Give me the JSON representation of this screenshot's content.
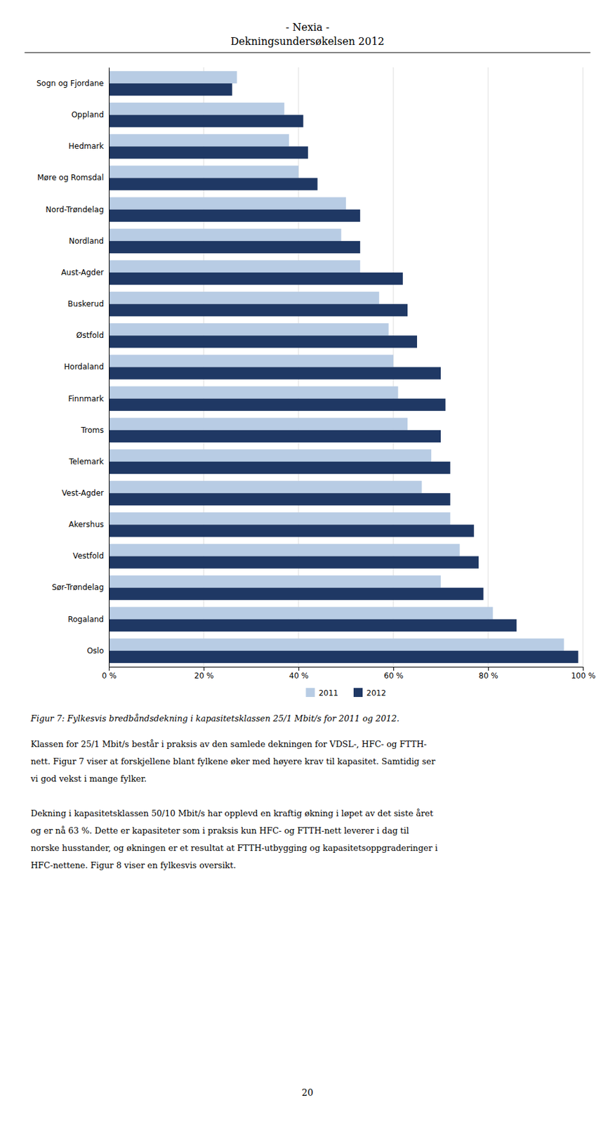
{
  "chart_data": {
    "type": "bar",
    "title": "- Nexia -",
    "subtitle": "Dekningsundersøkelsen 2012",
    "orientation": "horizontal",
    "categories": [
      "Sogn og Fjordane",
      "Oppland",
      "Hedmark",
      "Møre og Romsdal",
      "Nord-Trøndelag",
      "Nordland",
      "Aust-Agder",
      "Buskerud",
      "Østfold",
      "Hordaland",
      "Finnmark",
      "Troms",
      "Telemark",
      "Vest-Agder",
      "Akershus",
      "Vestfold",
      "Sør-Trøndelag",
      "Rogaland",
      "Oslo"
    ],
    "series": [
      {
        "name": "2011",
        "color": "#b8cce4",
        "values": [
          27,
          37,
          38,
          40,
          50,
          49,
          53,
          57,
          59,
          60,
          61,
          63,
          68,
          66,
          72,
          74,
          70,
          81,
          96
        ]
      },
      {
        "name": "2012",
        "color": "#1f3864",
        "values": [
          26,
          41,
          42,
          44,
          53,
          53,
          62,
          63,
          65,
          70,
          71,
          70,
          72,
          72,
          77,
          78,
          79,
          86,
          99
        ]
      }
    ],
    "xlim": [
      0,
      100
    ],
    "xticks": [
      {
        "value": 0,
        "label": "0 %"
      },
      {
        "value": 20,
        "label": "20 %"
      },
      {
        "value": 40,
        "label": "40 %"
      },
      {
        "value": 60,
        "label": "60 %"
      },
      {
        "value": 80,
        "label": "80 %"
      },
      {
        "value": 100,
        "label": "100 %"
      }
    ],
    "grid": true,
    "legend": "bottom"
  },
  "caption": "Figur 7: Fylkesvis bredbåndsdekning i kapasitetsklassen 25/1 Mbit/s for 2011 og 2012.",
  "body_text": [
    [
      "Klassen for 25/1 Mbit/s består i praksis av den samlede dekningen for VDSL-, HFC- og FTTH-",
      "nett. Figur 7 viser at forskjellene blant fylkene øker med høyere krav til kapasitet. Samtidig ser",
      "vi god vekst i mange fylker."
    ],
    [
      "Dekning i kapasitetsklassen 50/10 Mbit/s har opplevd en kraftig økning i løpet av det siste året",
      "og er nå 63 %. Dette er kapasiteter som i praksis kun HFC- og FTTH-nett leverer i dag til",
      "norske husstander, og økningen er et resultat at FTTH-utbygging og kapasitetsoppgraderinger i",
      "HFC-nettene. Figur 8 viser en fylkesvis oversikt."
    ]
  ],
  "page_number": "20"
}
